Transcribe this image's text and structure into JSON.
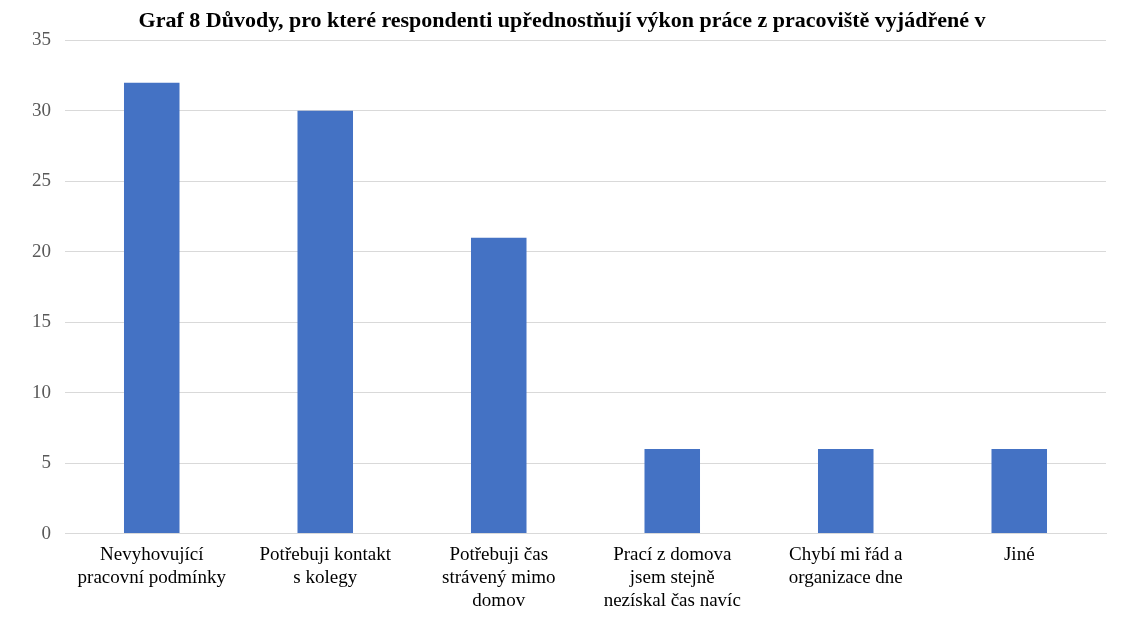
{
  "chart_data": {
    "type": "bar",
    "title": "Graf 8 Důvody, pro které respondenti upřednostňují výkon práce z pracoviště vyjádřené v",
    "categories": [
      "Nevyhovující pracovní podmínky",
      "Potřebuji kontakt s kolegy",
      "Potřebuji čas strávený mimo domov",
      "Prací z domova jsem stejně nezískal čas navíc",
      "Chybí mi řád a organizace dne",
      "Jiné"
    ],
    "values": [
      32,
      30,
      21,
      6,
      6,
      6
    ],
    "color": "#4472c4",
    "ylim": [
      0,
      35
    ],
    "yticks": [
      0,
      5,
      10,
      15,
      20,
      25,
      30,
      35
    ],
    "grid": "y",
    "legend": false
  }
}
